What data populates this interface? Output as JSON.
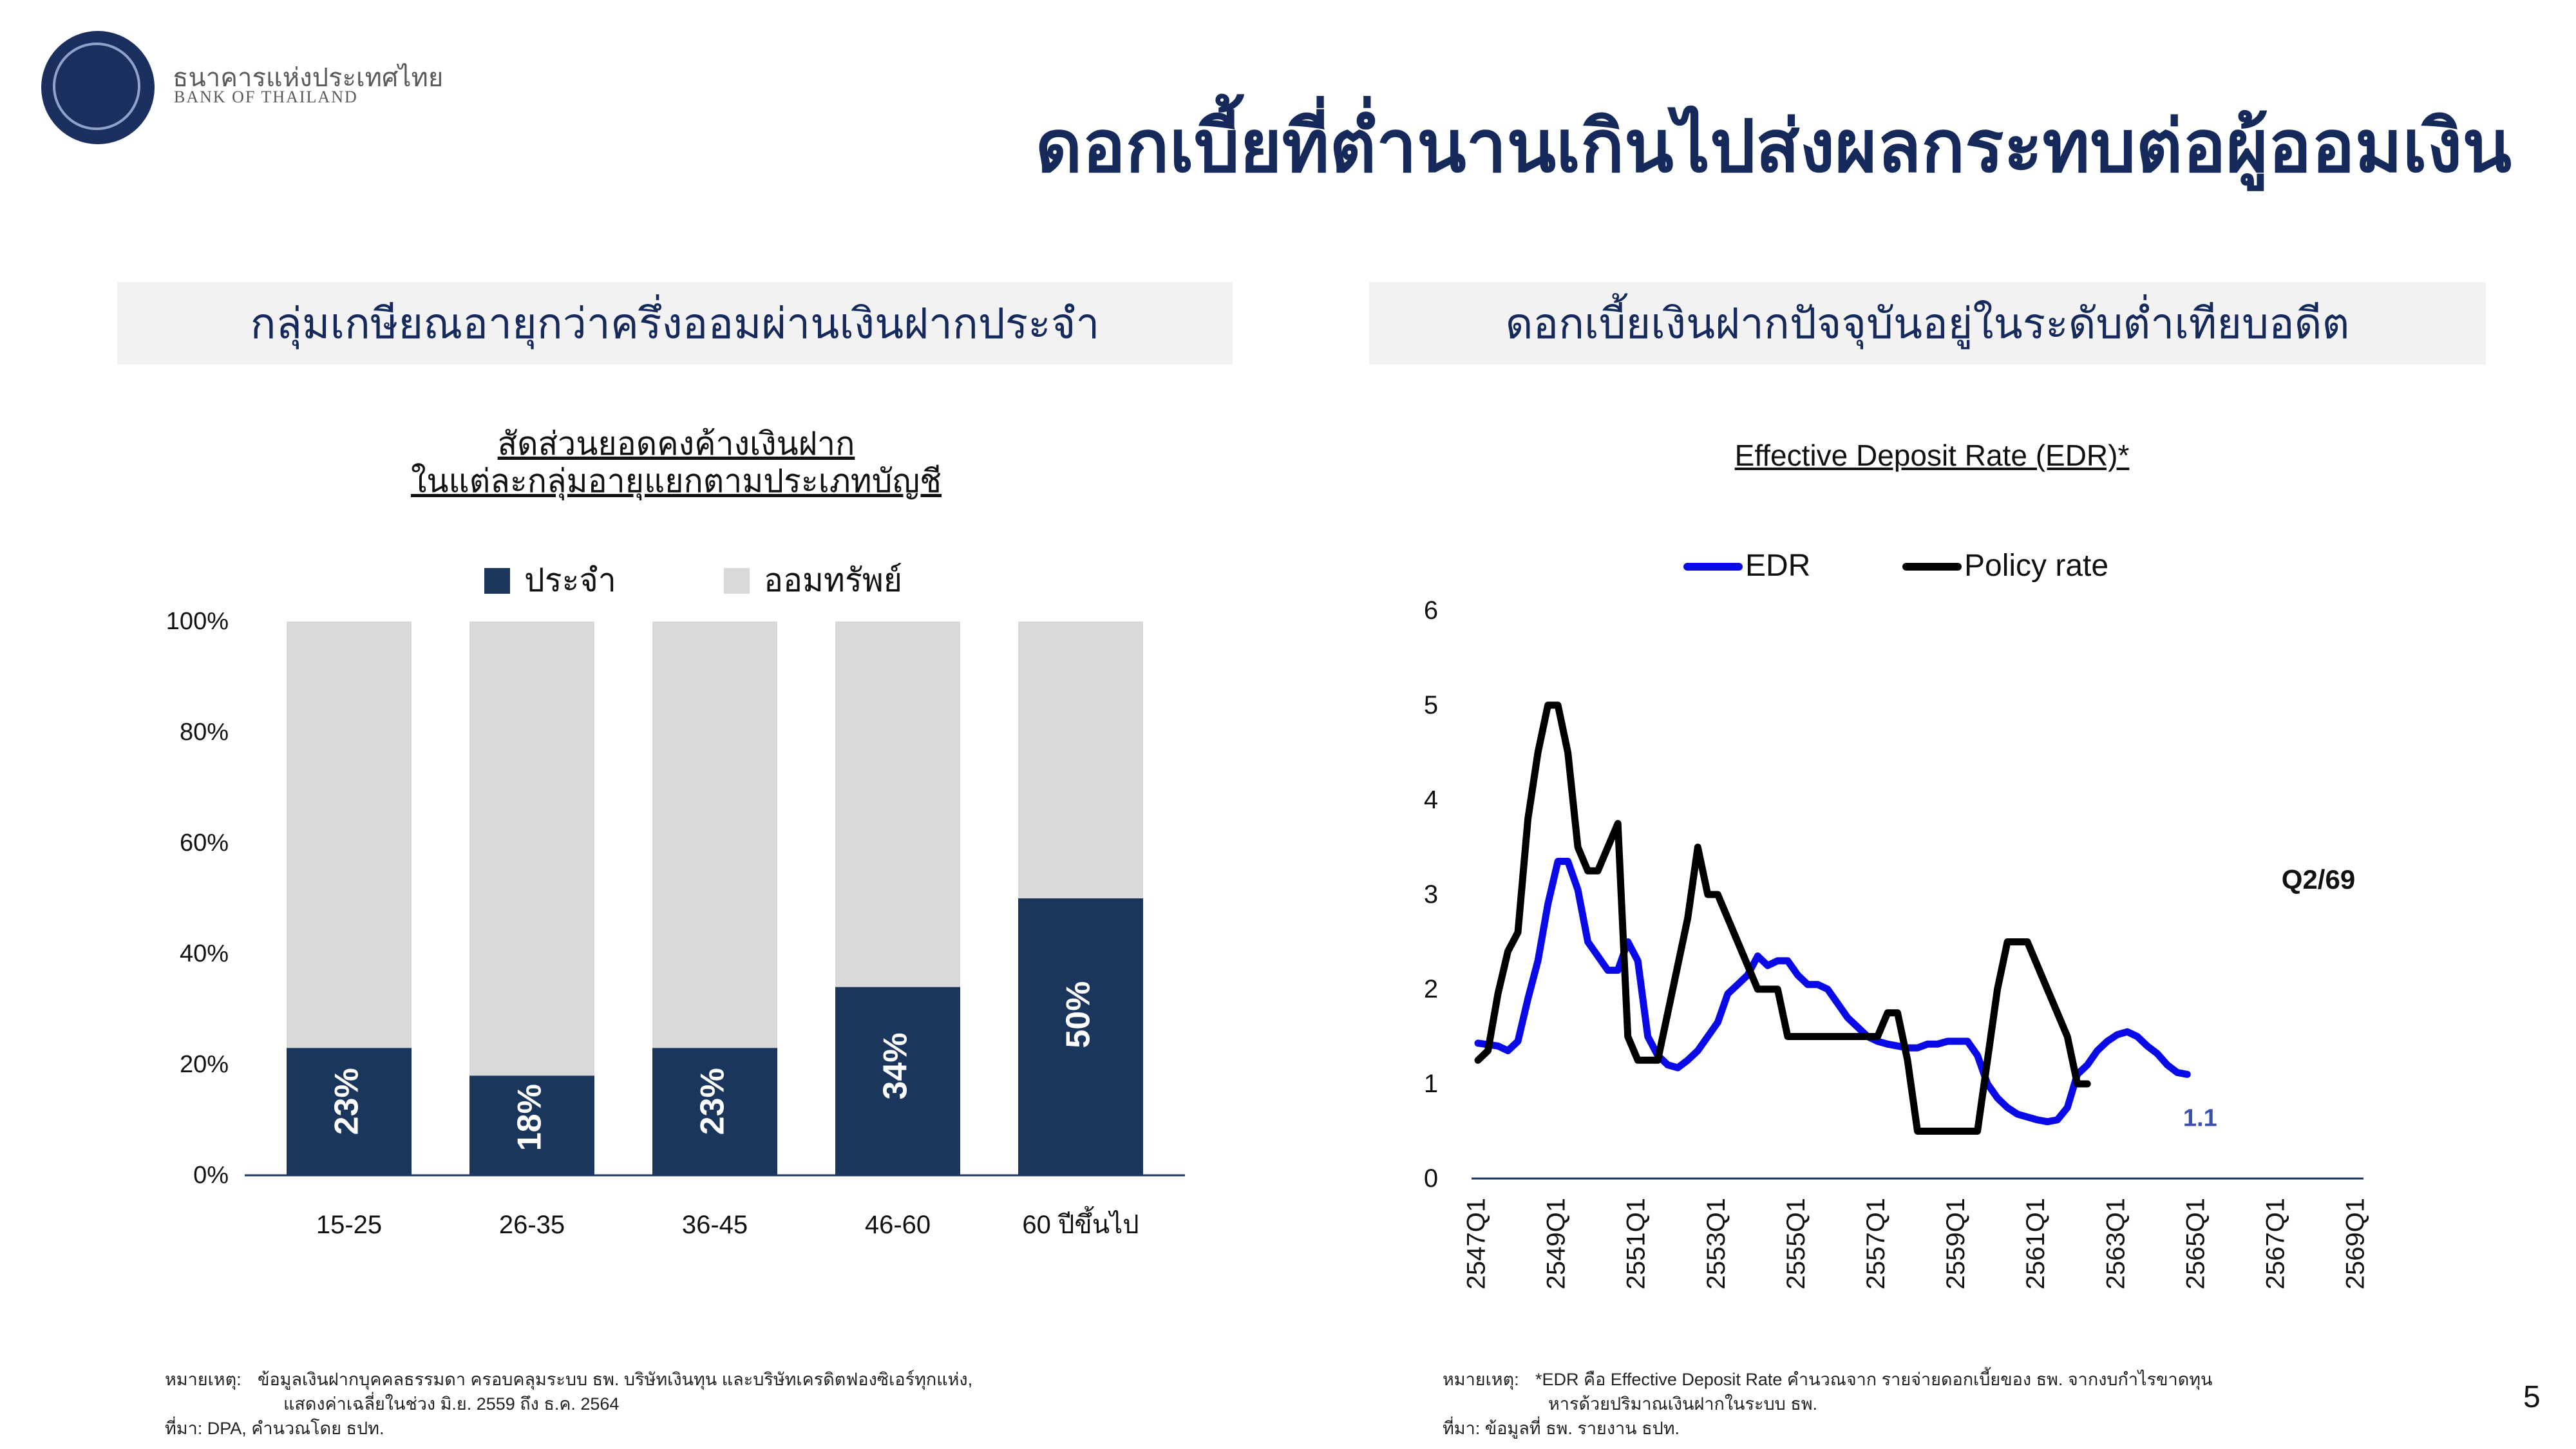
{
  "header": {
    "bank_name_th": "ธนาคารแห่งประเทศไทย",
    "bank_name_en": "BANK OF THAILAND",
    "title": "ดอกเบี้ยที่ต่ำนานเกินไปส่งผลกระทบต่อผู้ออมเงิน",
    "page_number": "5"
  },
  "left_panel": {
    "heading": "กลุ่มเกษียณอายุกว่าครึ่งออมผ่านเงินฝากประจำ",
    "note_label": "หมายเหตุ:",
    "note_line1": "ข้อมูลเงินฝากบุคคลธรรมดา ครอบคลุมระบบ ธพ. บริษัทเงินทุน และบริษัทเครดิตฟองซิเอร์ทุกแห่ง,",
    "note_line2": "แสดงค่าเฉลี่ยในช่วง มิ.ย. 2559 ถึง ธ.ค. 2564",
    "source": "ที่มา: DPA, คำนวณโดย ธปท."
  },
  "right_panel": {
    "heading": "ดอกเบี้ยเงินฝากปัจจุบันอยู่ในระดับต่ำเทียบอดีต",
    "note_label": "หมายเหตุ:",
    "note_line1": "*EDR คือ Effective Deposit Rate คำนวณจาก รายจ่ายดอกเบี้ยของ ธพ. จากงบกำไรขาดทุน",
    "note_line2": "หารด้วยปริมาณเงินฝากในระบบ ธพ.",
    "source": "ที่มา: ข้อมูลที่ ธพ. รายงาน ธปท."
  },
  "chart_data": [
    {
      "type": "bar",
      "stacked": true,
      "percent": true,
      "title_line1": "สัดส่วนยอดคงค้างเงินฝาก",
      "title_line2": "ในแต่ละกลุ่มอายุแยกตามประเภทบัญชี",
      "categories": [
        "15-25",
        "26-35",
        "36-45",
        "46-60",
        "60 ปีขึ้นไป"
      ],
      "series": [
        {
          "name": "ประจำ",
          "color": "#1b365d",
          "values": [
            23,
            18,
            23,
            34,
            50
          ]
        },
        {
          "name": "ออมทรัพย์",
          "color": "#d9d9d9",
          "values": [
            77,
            82,
            77,
            66,
            50
          ]
        }
      ],
      "data_labels": [
        "23%",
        "18%",
        "23%",
        "34%",
        "50%"
      ],
      "y_ticks": [
        "0%",
        "20%",
        "40%",
        "60%",
        "80%",
        "100%"
      ],
      "ylim": [
        0,
        100
      ],
      "legend_position": "top",
      "grid": false
    },
    {
      "type": "line",
      "title": "Effective Deposit Rate (EDR)*",
      "ylabel": "%",
      "ylim": [
        0,
        6
      ],
      "y_ticks": [
        "0",
        "1",
        "2",
        "3",
        "4",
        "5",
        "6"
      ],
      "x_ticks": [
        "2547Q1",
        "2549Q1",
        "2551Q1",
        "2553Q1",
        "2555Q1",
        "2557Q1",
        "2559Q1",
        "2561Q1",
        "2563Q1",
        "2565Q1",
        "2567Q1",
        "2569Q1"
      ],
      "x_range": [
        "2547Q1",
        "2569Q1"
      ],
      "legend_position": "top",
      "grid": false,
      "annotations": [
        {
          "text": "Q2/69",
          "near": "end of series"
        },
        {
          "text": "1.1",
          "near": "last EDR value",
          "color": "#3a4fb0"
        }
      ],
      "series": [
        {
          "name": "EDR",
          "color": "#0a0ae8",
          "points": [
            [
              "2547Q1",
              1.43
            ],
            [
              "2547Q3",
              1.4
            ],
            [
              "2547Q4",
              1.35
            ],
            [
              "2548Q1",
              1.45
            ],
            [
              "2548Q2",
              1.9
            ],
            [
              "2548Q3",
              2.3
            ],
            [
              "2548Q4",
              2.9
            ],
            [
              "2549Q1",
              3.35
            ],
            [
              "2549Q2",
              3.35
            ],
            [
              "2549Q3",
              3.05
            ],
            [
              "2549Q4",
              2.5
            ],
            [
              "2550Q1",
              2.35
            ],
            [
              "2550Q2",
              2.2
            ],
            [
              "2550Q3",
              2.2
            ],
            [
              "2550Q4",
              2.5
            ],
            [
              "2551Q1",
              2.3
            ],
            [
              "2551Q2",
              1.5
            ],
            [
              "2551Q3",
              1.3
            ],
            [
              "2551Q4",
              1.2
            ],
            [
              "2552Q1",
              1.17
            ],
            [
              "2552Q2",
              1.25
            ],
            [
              "2552Q3",
              1.35
            ],
            [
              "2552Q4",
              1.5
            ],
            [
              "2553Q1",
              1.65
            ],
            [
              "2553Q2",
              1.95
            ],
            [
              "2553Q3",
              2.05
            ],
            [
              "2553Q4",
              2.15
            ],
            [
              "2554Q1",
              2.35
            ],
            [
              "2554Q2",
              2.25
            ],
            [
              "2554Q3",
              2.3
            ],
            [
              "2554Q4",
              2.3
            ],
            [
              "2555Q1",
              2.15
            ],
            [
              "2555Q2",
              2.05
            ],
            [
              "2555Q3",
              2.05
            ],
            [
              "2555Q4",
              2.0
            ],
            [
              "2556Q1",
              1.85
            ],
            [
              "2556Q2",
              1.7
            ],
            [
              "2556Q3",
              1.6
            ],
            [
              "2556Q4",
              1.5
            ],
            [
              "2557Q1",
              1.45
            ],
            [
              "2557Q2",
              1.42
            ],
            [
              "2557Q3",
              1.4
            ],
            [
              "2557Q4",
              1.38
            ],
            [
              "2558Q1",
              1.38
            ],
            [
              "2558Q2",
              1.42
            ],
            [
              "2558Q3",
              1.42
            ],
            [
              "2558Q4",
              1.45
            ],
            [
              "2559Q1",
              1.45
            ],
            [
              "2559Q2",
              1.45
            ],
            [
              "2559Q3",
              1.3
            ],
            [
              "2559Q4",
              1.0
            ],
            [
              "2560Q1",
              0.85
            ],
            [
              "2560Q2",
              0.75
            ],
            [
              "2560Q3",
              0.68
            ],
            [
              "2560Q4",
              0.65
            ],
            [
              "2561Q1",
              0.62
            ],
            [
              "2561Q2",
              0.6
            ],
            [
              "2561Q3",
              0.62
            ],
            [
              "2561Q4",
              0.75
            ],
            [
              "2562Q1",
              1.1
            ],
            [
              "2562Q2",
              1.2
            ],
            [
              "2562Q3",
              1.35
            ],
            [
              "2562Q4",
              1.45
            ],
            [
              "2563Q1",
              1.52
            ],
            [
              "2563Q2",
              1.55
            ],
            [
              "2563Q3",
              1.5
            ],
            [
              "2563Q4",
              1.4
            ],
            [
              "2564Q1",
              1.32
            ],
            [
              "2564Q2",
              1.2
            ],
            [
              "2564Q3",
              1.12
            ],
            [
              "2564Q4",
              1.1
            ]
          ]
        },
        {
          "name": "Policy rate",
          "color": "#000000",
          "points": [
            [
              "2547Q1",
              1.25
            ],
            [
              "2547Q2",
              1.35
            ],
            [
              "2547Q3",
              1.95
            ],
            [
              "2547Q4",
              2.4
            ],
            [
              "2548Q1",
              2.6
            ],
            [
              "2548Q2",
              3.8
            ],
            [
              "2548Q3",
              4.5
            ],
            [
              "2548Q4",
              5.0
            ],
            [
              "2549Q1",
              5.0
            ],
            [
              "2549Q2",
              4.5
            ],
            [
              "2549Q3",
              3.5
            ],
            [
              "2549Q4",
              3.25
            ],
            [
              "2550Q1",
              3.25
            ],
            [
              "2550Q2",
              3.5
            ],
            [
              "2550Q3",
              3.75
            ],
            [
              "2550Q4",
              1.5
            ],
            [
              "2551Q1",
              1.25
            ],
            [
              "2551Q2",
              1.25
            ],
            [
              "2551Q3",
              1.25
            ],
            [
              "2551Q4",
              1.75
            ],
            [
              "2552Q1",
              2.25
            ],
            [
              "2552Q2",
              2.75
            ],
            [
              "2552Q3",
              3.5
            ],
            [
              "2552Q4",
              3.0
            ],
            [
              "2553Q1",
              3.0
            ],
            [
              "2553Q2",
              2.75
            ],
            [
              "2553Q3",
              2.5
            ],
            [
              "2553Q4",
              2.25
            ],
            [
              "2554Q1",
              2.0
            ],
            [
              "2554Q2",
              2.0
            ],
            [
              "2554Q3",
              2.0
            ],
            [
              "2554Q4",
              1.5
            ],
            [
              "2555Q1",
              1.5
            ],
            [
              "2555Q2",
              1.5
            ],
            [
              "2555Q3",
              1.5
            ],
            [
              "2555Q4",
              1.5
            ],
            [
              "2556Q1",
              1.5
            ],
            [
              "2556Q2",
              1.5
            ],
            [
              "2556Q3",
              1.5
            ],
            [
              "2556Q4",
              1.5
            ],
            [
              "2557Q1",
              1.5
            ],
            [
              "2557Q2",
              1.75
            ],
            [
              "2557Q3",
              1.75
            ],
            [
              "2557Q4",
              1.25
            ],
            [
              "2558Q1",
              0.5
            ],
            [
              "2558Q2",
              0.5
            ],
            [
              "2558Q3",
              0.5
            ],
            [
              "2558Q4",
              0.5
            ],
            [
              "2559Q1",
              0.5
            ],
            [
              "2559Q2",
              0.5
            ],
            [
              "2559Q3",
              0.5
            ],
            [
              "2559Q4",
              1.25
            ],
            [
              "2560Q1",
              2.0
            ],
            [
              "2560Q2",
              2.5
            ],
            [
              "2560Q3",
              2.5
            ],
            [
              "2560Q4",
              2.5
            ],
            [
              "2561Q1",
              2.25
            ],
            [
              "2561Q2",
              2.0
            ],
            [
              "2561Q3",
              1.75
            ],
            [
              "2561Q4",
              1.5
            ],
            [
              "2562Q1",
              1.0
            ],
            [
              "2562Q2",
              1.0
            ]
          ]
        }
      ]
    }
  ]
}
